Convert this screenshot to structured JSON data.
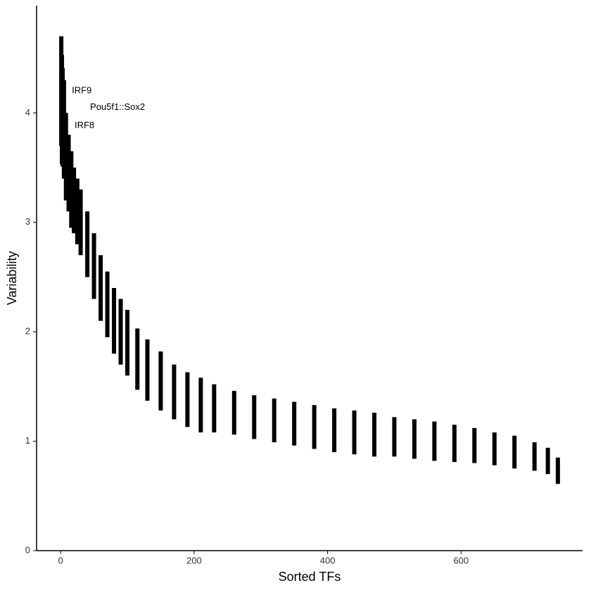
{
  "chart_data": {
    "type": "errorbar",
    "x_label": "Sorted TFs",
    "y_label": "Variability",
    "x": [
      1,
      2,
      3,
      5,
      8,
      12,
      16,
      20,
      25,
      30,
      40,
      50,
      60,
      70,
      80,
      90,
      100,
      115,
      130,
      150,
      170,
      190,
      210,
      230,
      260,
      290,
      320,
      350,
      380,
      410,
      440,
      470,
      500,
      530,
      560,
      590,
      620,
      650,
      680,
      710,
      730,
      745
    ],
    "values": [
      4.2,
      4.03,
      3.96,
      3.85,
      3.6,
      3.45,
      3.3,
      3.2,
      3.1,
      3.0,
      2.8,
      2.6,
      2.4,
      2.25,
      2.1,
      2.0,
      1.9,
      1.75,
      1.65,
      1.55,
      1.45,
      1.38,
      1.33,
      1.3,
      1.26,
      1.22,
      1.19,
      1.16,
      1.13,
      1.1,
      1.08,
      1.06,
      1.04,
      1.02,
      1.0,
      0.98,
      0.96,
      0.93,
      0.9,
      0.86,
      0.82,
      0.73
    ],
    "errors": [
      0.5,
      0.5,
      0.45,
      0.45,
      0.4,
      0.35,
      0.35,
      0.3,
      0.3,
      0.3,
      0.3,
      0.3,
      0.3,
      0.3,
      0.3,
      0.3,
      0.3,
      0.28,
      0.28,
      0.27,
      0.25,
      0.25,
      0.25,
      0.22,
      0.2,
      0.2,
      0.2,
      0.2,
      0.2,
      0.2,
      0.2,
      0.2,
      0.18,
      0.18,
      0.18,
      0.17,
      0.16,
      0.15,
      0.15,
      0.13,
      0.12,
      0.12
    ],
    "point_labels": [
      "IRF9",
      "Pou5f1::Sox2",
      "IRF8",
      null,
      null,
      null,
      null,
      null,
      null,
      null,
      null,
      null,
      null,
      null,
      null,
      null,
      null,
      null,
      null,
      null,
      null,
      null,
      null,
      null,
      null,
      null,
      null,
      null,
      null,
      null,
      null,
      null,
      null,
      null,
      null,
      null,
      null,
      null,
      null,
      null,
      null,
      null
    ],
    "color": "#000000",
    "xlim": [
      -36,
      782
    ],
    "ylim": [
      0,
      4.98
    ],
    "xticks": [
      0,
      200,
      400,
      600
    ],
    "yticks": [
      0,
      1,
      2,
      3,
      4
    ],
    "grid": false
  }
}
